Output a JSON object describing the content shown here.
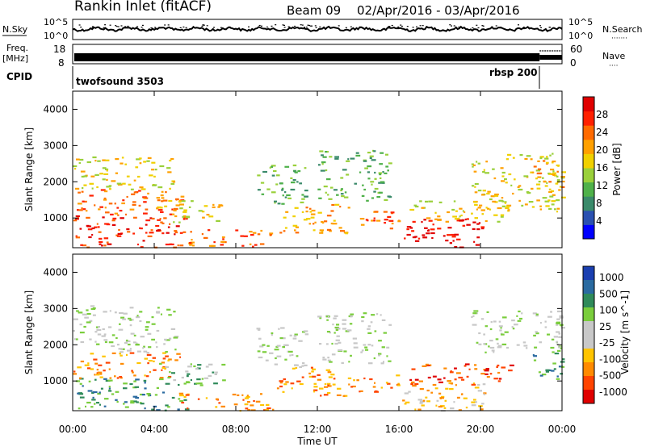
{
  "header": {
    "station": "Rankin Inlet (fitACF)",
    "beam": "Beam 09",
    "date_range": "02/Apr/2016 - 03/Apr/2016"
  },
  "labels": {
    "nsky": "N.Sky",
    "nsearch": "N.Search",
    "nsearch_dots": "·······",
    "freq": "Freq.",
    "freq_unit": "[MHz]",
    "nave": "Nave",
    "nave_dots": "····",
    "cpid": "CPID"
  },
  "noise_axis": {
    "top": "10^5",
    "bottom": "10^0",
    "top_right": "10^5",
    "bottom_right": "10^0"
  },
  "freq_axis": {
    "left_ticks": [
      "18",
      "8"
    ],
    "right_ticks": [
      "60",
      "0"
    ]
  },
  "cpid_programs": [
    {
      "name": "twofsound 3503",
      "start_hour": 0,
      "end_hour": 22.9
    },
    {
      "name": "rbsp 200",
      "start_hour": 22.9,
      "end_hour": 24
    }
  ],
  "colors": {
    "power": [
      "#0000ff",
      "#2a50b0",
      "#3a8a6a",
      "#4fb14a",
      "#9ad03a",
      "#f0d000",
      "#ffa000",
      "#ff6a00",
      "#ff2000",
      "#e00000"
    ],
    "velocity": [
      "#1a3fb0",
      "#2a6aa0",
      "#2f8a5a",
      "#7acd3c",
      "#c8c8c8",
      "#c8c8c8",
      "#ffc400",
      "#ff8a00",
      "#ff4400",
      "#e00000"
    ]
  },
  "chart_data": [
    {
      "type": "heatmap",
      "panel": "power",
      "ylabel": "Slant Range [km]",
      "ylim": [
        180,
        4500
      ],
      "yticks": [
        1000,
        2000,
        3000,
        4000
      ],
      "xlim": [
        0,
        24
      ],
      "colorbar_label": "Power [dB]",
      "colorbar_ticks": [
        "4",
        "8",
        "12",
        "16",
        "20",
        "24",
        "28"
      ],
      "colorbar_range": [
        0,
        32
      ],
      "regions": [
        {
          "t0": 0,
          "t1": 5.6,
          "r0": 200,
          "r1": 1100,
          "level": 8
        },
        {
          "t0": 0,
          "t1": 5.5,
          "r0": 1100,
          "r1": 1800,
          "level": 7
        },
        {
          "t0": 0,
          "t1": 5.0,
          "r0": 1800,
          "r1": 2700,
          "level": 5
        },
        {
          "t0": 4.0,
          "t1": 7.5,
          "r0": 900,
          "r1": 1500,
          "level": 5
        },
        {
          "t0": 5.2,
          "t1": 9.8,
          "r0": 200,
          "r1": 700,
          "level": 7
        },
        {
          "t0": 9.0,
          "t1": 11.5,
          "r0": 1400,
          "r1": 2500,
          "level": 3
        },
        {
          "t0": 10.0,
          "t1": 13.5,
          "r0": 600,
          "r1": 1400,
          "level": 6
        },
        {
          "t0": 12.0,
          "t1": 15.5,
          "r0": 1500,
          "r1": 2900,
          "level": 3
        },
        {
          "t0": 13.5,
          "t1": 16.0,
          "r0": 700,
          "r1": 1200,
          "level": 7
        },
        {
          "t0": 16.0,
          "t1": 20.2,
          "r0": 200,
          "r1": 1000,
          "level": 9
        },
        {
          "t0": 16.5,
          "t1": 21.5,
          "r0": 900,
          "r1": 1500,
          "level": 5
        },
        {
          "t0": 19.5,
          "t1": 24,
          "r0": 1200,
          "r1": 2800,
          "level": 5
        },
        {
          "t0": 22.5,
          "t1": 24,
          "r0": 1800,
          "r1": 2600,
          "level": 6
        }
      ]
    },
    {
      "type": "heatmap",
      "panel": "velocity",
      "ylabel": "Slant Range [km]",
      "ylim": [
        180,
        4500
      ],
      "yticks": [
        1000,
        2000,
        3000,
        4000
      ],
      "xlim": [
        0,
        24
      ],
      "xticks": [
        "00:00",
        "04:00",
        "08:00",
        "12:00",
        "16:00",
        "20:00",
        "00:00"
      ],
      "xlabel": "Time UT",
      "colorbar_label": "Velocity [m s^-1]",
      "colorbar_ticks": [
        "1000",
        "500",
        "100",
        "25",
        "-25",
        "-100",
        "-500",
        "-1000"
      ],
      "regions": [
        {
          "t0": 0,
          "t1": 5.6,
          "r0": 200,
          "r1": 1100,
          "level": 2
        },
        {
          "t0": 0,
          "t1": 5.5,
          "r0": 1100,
          "r1": 1800,
          "level": 7
        },
        {
          "t0": 0,
          "t1": 5.0,
          "r0": 1800,
          "r1": 3100,
          "level": 4
        },
        {
          "t0": 4.0,
          "t1": 7.5,
          "r0": 900,
          "r1": 1500,
          "level": 3
        },
        {
          "t0": 5.2,
          "t1": 9.8,
          "r0": 200,
          "r1": 700,
          "level": 7
        },
        {
          "t0": 9.0,
          "t1": 11.5,
          "r0": 1400,
          "r1": 2500,
          "level": 4
        },
        {
          "t0": 10.0,
          "t1": 13.5,
          "r0": 600,
          "r1": 1400,
          "level": 7
        },
        {
          "t0": 12.0,
          "t1": 15.5,
          "r0": 1500,
          "r1": 2900,
          "level": 4
        },
        {
          "t0": 13.5,
          "t1": 16.0,
          "r0": 700,
          "r1": 1200,
          "level": 7
        },
        {
          "t0": 16.0,
          "t1": 20.2,
          "r0": 200,
          "r1": 1000,
          "level": 6
        },
        {
          "t0": 16.5,
          "t1": 21.5,
          "r0": 900,
          "r1": 1500,
          "level": 8
        },
        {
          "t0": 19.5,
          "t1": 24,
          "r0": 1800,
          "r1": 3000,
          "level": 4
        },
        {
          "t0": 22.5,
          "t1": 24,
          "r0": 1000,
          "r1": 1800,
          "level": 2
        }
      ]
    }
  ]
}
